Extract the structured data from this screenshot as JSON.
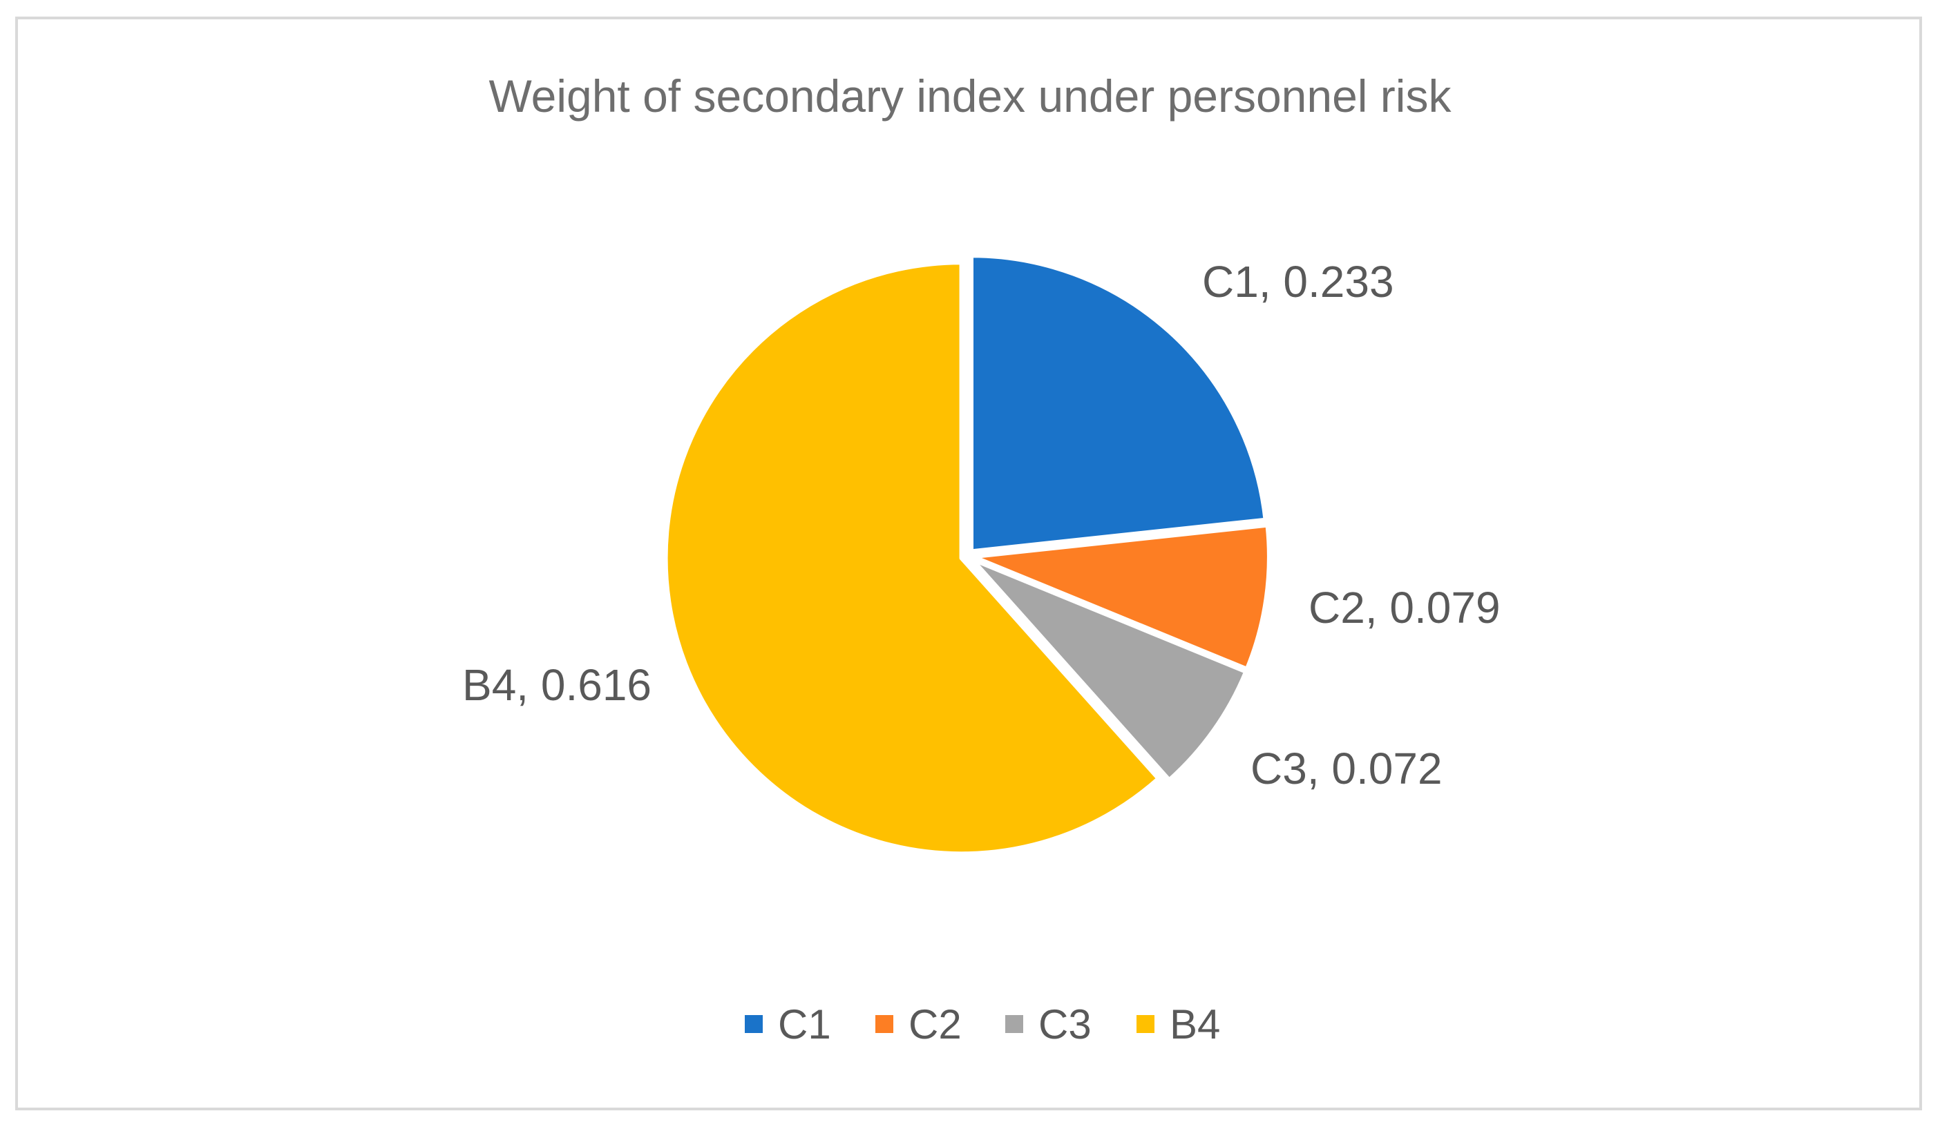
{
  "chart_data": {
    "type": "pie",
    "title": "Weight of secondary index under personnel risk",
    "categories": [
      "C1",
      "C2",
      "C3",
      "B4"
    ],
    "values": [
      0.233,
      0.079,
      0.072,
      0.616
    ],
    "colors": [
      "#1a73c9",
      "#fd7e23",
      "#a6a6a6",
      "#ffc000"
    ],
    "data_labels": [
      "C1, 0.233",
      "C2, 0.079",
      "C3, 0.072",
      "B4, 0.616"
    ],
    "start_angle_deg": 0,
    "direction": "clockwise",
    "legend_position": "bottom"
  }
}
